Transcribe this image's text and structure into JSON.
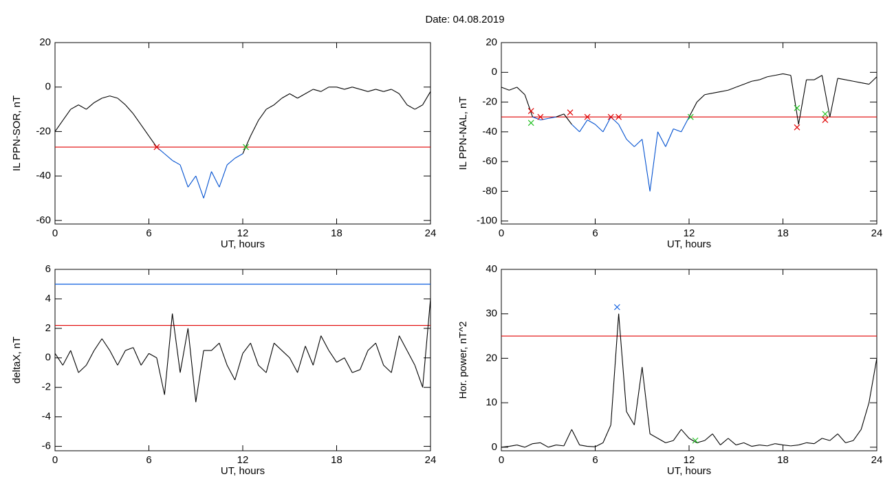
{
  "title": "Date:  04.08.2019",
  "chart_data": [
    {
      "type": "line",
      "ylabel": "IL PPN-SOR, nT",
      "xlabel": "UT, hours",
      "xlim": [
        0,
        24
      ],
      "xticks": [
        0,
        6,
        12,
        18,
        24
      ],
      "ylim": [
        -61.6,
        20
      ],
      "yticks": [
        -60,
        -40,
        -20,
        0,
        20
      ],
      "color": "#000000",
      "highlight_color": "#0050d0",
      "hlines": [
        {
          "value": -27,
          "color": "#e00000"
        }
      ],
      "x": [
        0,
        0.5,
        1,
        1.5,
        2,
        2.5,
        3,
        3.5,
        4,
        4.5,
        5,
        5.5,
        6,
        6.5,
        7,
        7.5,
        8,
        8.5,
        9,
        9.5,
        10,
        10.5,
        11,
        11.5,
        12,
        12.5,
        13,
        13.5,
        14,
        14.5,
        15,
        15.5,
        16,
        16.5,
        17,
        17.5,
        18,
        18.5,
        19,
        19.5,
        20,
        20.5,
        21,
        21.5,
        22,
        22.5,
        23,
        23.5,
        24
      ],
      "values": [
        -20,
        -15,
        -10,
        -8,
        -10,
        -7,
        -5,
        -4,
        -5,
        -8,
        -12,
        -17,
        -22,
        -27,
        -30,
        -33,
        -35,
        -45,
        -40,
        -50,
        -38,
        -45,
        -35,
        -32,
        -30,
        -22,
        -15,
        -10,
        -8,
        -5,
        -3,
        -5,
        -3,
        -1,
        -2,
        0,
        0,
        -1,
        0,
        -1,
        -2,
        -1,
        -2,
        -1,
        -3,
        -8,
        -10,
        -8,
        -2
      ],
      "markers": [
        {
          "x": 6.5,
          "y": -27,
          "color": "#e00000"
        },
        {
          "x": 12.2,
          "y": -27,
          "color": "#20c020"
        }
      ]
    },
    {
      "type": "line",
      "ylabel": "IL PPN-NAL, nT",
      "xlabel": "UT, hours",
      "xlim": [
        0,
        24
      ],
      "xticks": [
        0,
        6,
        12,
        18,
        24
      ],
      "ylim": [
        -102,
        20
      ],
      "yticks": [
        -100,
        -80,
        -60,
        -40,
        -20,
        0,
        20
      ],
      "color": "#000000",
      "highlight_color": "#0050d0",
      "hlines": [
        {
          "value": -30,
          "color": "#e00000"
        }
      ],
      "x": [
        0,
        0.5,
        1,
        1.5,
        2,
        2.5,
        3,
        3.5,
        4,
        4.5,
        5,
        5.5,
        6,
        6.5,
        7,
        7.5,
        8,
        8.5,
        9,
        9.5,
        10,
        10.5,
        11,
        11.5,
        12,
        12.5,
        13,
        13.5,
        14,
        14.5,
        15,
        15.5,
        16,
        16.5,
        17,
        17.5,
        18,
        18.5,
        19,
        19.5,
        20,
        20.5,
        21,
        21.5,
        22,
        22.5,
        23,
        23.5,
        24
      ],
      "values": [
        -10,
        -12,
        -10,
        -15,
        -30,
        -32,
        -31,
        -30,
        -28,
        -35,
        -40,
        -32,
        -35,
        -40,
        -30,
        -35,
        -45,
        -50,
        -45,
        -80,
        -40,
        -50,
        -38,
        -40,
        -30,
        -20,
        -15,
        -14,
        -13,
        -12,
        -10,
        -8,
        -6,
        -5,
        -3,
        -2,
        -1,
        -2,
        -35,
        -5,
        -5,
        -2,
        -30,
        -4,
        -5,
        -6,
        -7,
        -8,
        -3
      ],
      "markers": [
        {
          "x": 1.9,
          "y": -26,
          "color": "#e00000"
        },
        {
          "x": 1.9,
          "y": -34,
          "color": "#20c020"
        },
        {
          "x": 2.5,
          "y": -30,
          "color": "#e00000"
        },
        {
          "x": 4.4,
          "y": -27,
          "color": "#e00000"
        },
        {
          "x": 5.5,
          "y": -30,
          "color": "#e00000"
        },
        {
          "x": 7,
          "y": -30,
          "color": "#e00000"
        },
        {
          "x": 7.5,
          "y": -30,
          "color": "#e00000"
        },
        {
          "x": 12.1,
          "y": -30,
          "color": "#20c020"
        },
        {
          "x": 18.9,
          "y": -37,
          "color": "#e00000"
        },
        {
          "x": 18.9,
          "y": -24,
          "color": "#20c020"
        },
        {
          "x": 20.7,
          "y": -32,
          "color": "#e00000"
        },
        {
          "x": 20.7,
          "y": -28,
          "color": "#20c020"
        }
      ]
    },
    {
      "type": "line",
      "ylabel": "deltaX, nT",
      "xlabel": "UT, hours",
      "xlim": [
        0,
        24
      ],
      "xticks": [
        0,
        6,
        12,
        18,
        24
      ],
      "ylim": [
        -6.3,
        6
      ],
      "yticks": [
        -6,
        -4,
        -2,
        0,
        2,
        4,
        6
      ],
      "color": "#000000",
      "hlines": [
        {
          "value": 5,
          "color": "#1060e0"
        },
        {
          "value": 2.2,
          "color": "#e00000"
        }
      ],
      "x": [
        0,
        0.5,
        1,
        1.5,
        2,
        2.5,
        3,
        3.5,
        4,
        4.5,
        5,
        5.5,
        6,
        6.5,
        7,
        7.5,
        8,
        8.5,
        9,
        9.5,
        10,
        10.5,
        11,
        11.5,
        12,
        12.5,
        13,
        13.5,
        14,
        14.5,
        15,
        15.5,
        16,
        16.5,
        17,
        17.5,
        18,
        18.5,
        19,
        19.5,
        20,
        20.5,
        21,
        21.5,
        22,
        22.5,
        23,
        23.5,
        24
      ],
      "values": [
        0.3,
        -0.5,
        0.5,
        -1,
        -0.5,
        0.5,
        1.3,
        0.5,
        -0.5,
        0.5,
        0.7,
        -0.5,
        0.3,
        0,
        -2.5,
        3,
        -1,
        2,
        -3,
        0.5,
        0.5,
        1,
        -0.5,
        -1.5,
        0.3,
        1,
        -0.5,
        -1,
        1,
        0.5,
        0,
        -1,
        0.8,
        -0.5,
        1.5,
        0.5,
        -0.3,
        0,
        -1,
        -0.8,
        0.5,
        1,
        -0.5,
        -1,
        1.5,
        0.5,
        -0.5,
        -2,
        4
      ]
    },
    {
      "type": "line",
      "ylabel": "Hor. power, nT^2",
      "xlabel": "UT, hours",
      "xlim": [
        0,
        24
      ],
      "xticks": [
        0,
        6,
        12,
        18,
        24
      ],
      "ylim": [
        -0.8,
        40
      ],
      "yticks": [
        0,
        10,
        20,
        30,
        40
      ],
      "color": "#000000",
      "hlines": [
        {
          "value": 25,
          "color": "#e00000"
        }
      ],
      "x": [
        0,
        0.5,
        1,
        1.5,
        2,
        2.5,
        3,
        3.5,
        4,
        4.5,
        5,
        5.5,
        6,
        6.5,
        7,
        7.5,
        8,
        8.5,
        9,
        9.5,
        10,
        10.5,
        11,
        11.5,
        12,
        12.5,
        13,
        13.5,
        14,
        14.5,
        15,
        15.5,
        16,
        16.5,
        17,
        17.5,
        18,
        18.5,
        19,
        19.5,
        20,
        20.5,
        21,
        21.5,
        22,
        22.5,
        23,
        23.5,
        24
      ],
      "values": [
        0,
        0.2,
        0.5,
        0,
        0.8,
        1,
        0,
        0.5,
        0.3,
        4,
        0.5,
        0.2,
        0.1,
        1,
        5,
        30,
        8,
        5,
        18,
        3,
        2,
        1,
        1.5,
        4,
        2,
        1,
        1.5,
        3,
        0.5,
        2,
        0.5,
        1,
        0.2,
        0.5,
        0.3,
        0.8,
        0.5,
        0.3,
        0.5,
        1,
        0.8,
        2,
        1.5,
        3,
        1,
        1.5,
        4,
        10,
        20
      ],
      "markers": [
        {
          "x": 7.4,
          "y": 31.5,
          "color": "#1060e0"
        },
        {
          "x": 12.4,
          "y": 1.5,
          "color": "#20c020"
        }
      ]
    }
  ]
}
